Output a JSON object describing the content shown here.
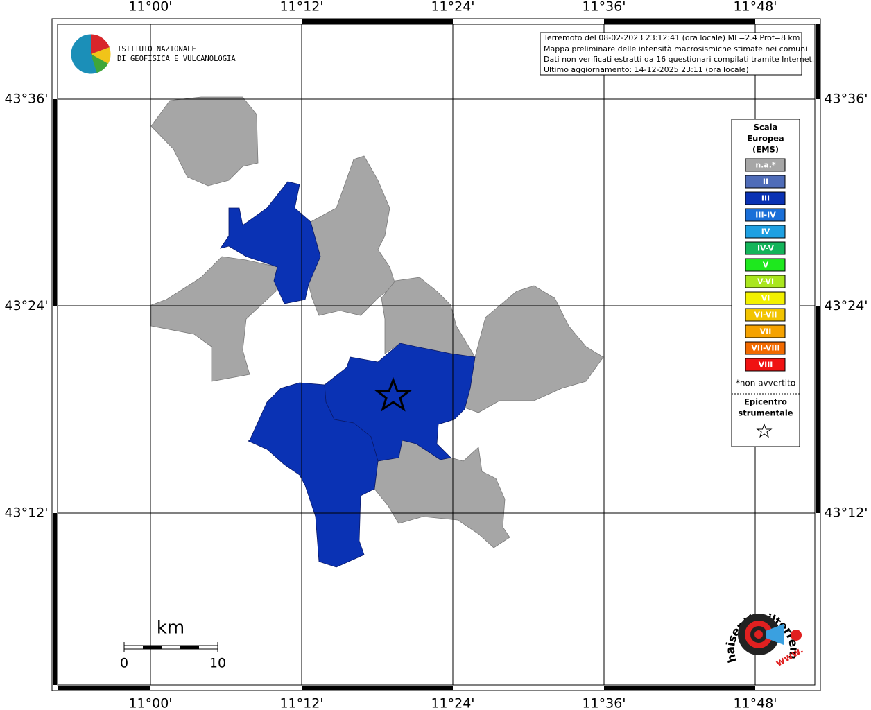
{
  "map": {
    "lon_labels": [
      "11°00'",
      "11°12'",
      "11°24'",
      "11°36'",
      "11°48'"
    ],
    "lat_labels": [
      "43°36'",
      "43°24'",
      "43°12'"
    ],
    "logo": {
      "line1": "ISTITUTO NAZIONALE",
      "line2": "DI GEOFISICA E VULCANOLOGIA"
    },
    "info": [
      "Terremoto del 08-02-2023 23:12:41 (ora locale) ML=2.4 Prof=8 km",
      "Mappa preliminare delle intensità macrosismiche stimate nei comuni",
      "Dati non verificati estratti da 16 questionari compilati tramite Internet.",
      "Ultimo aggiornamento: 14-12-2025 23:11 (ora locale)"
    ],
    "legend": {
      "title": [
        "Scala",
        "Europea",
        "(EMS)"
      ],
      "items": [
        {
          "label": "n.a.*",
          "color": "#a6a6a6"
        },
        {
          "label": "II",
          "color": "#4f6cb8"
        },
        {
          "label": "III",
          "color": "#0a32b4"
        },
        {
          "label": "III-IV",
          "color": "#1a6fd8"
        },
        {
          "label": "IV",
          "color": "#1ea0e2"
        },
        {
          "label": "IV-V",
          "color": "#14b45a"
        },
        {
          "label": "V",
          "color": "#1ee81e"
        },
        {
          "label": "V-VI",
          "color": "#aae61e"
        },
        {
          "label": "VI",
          "color": "#f2f000"
        },
        {
          "label": "VI-VII",
          "color": "#f2c400"
        },
        {
          "label": "VII",
          "color": "#f5a200"
        },
        {
          "label": "VII-VIII",
          "color": "#f26a00"
        },
        {
          "label": "VIII",
          "color": "#f01212"
        }
      ],
      "note": "*non avvertito",
      "epicentre": [
        "Epicentro",
        "strumentale"
      ]
    },
    "scale": {
      "unit": "km",
      "start": "0",
      "end": "10"
    },
    "site_logo": {
      "name": "haisentitoilterremoto.it",
      "www": "www."
    }
  }
}
